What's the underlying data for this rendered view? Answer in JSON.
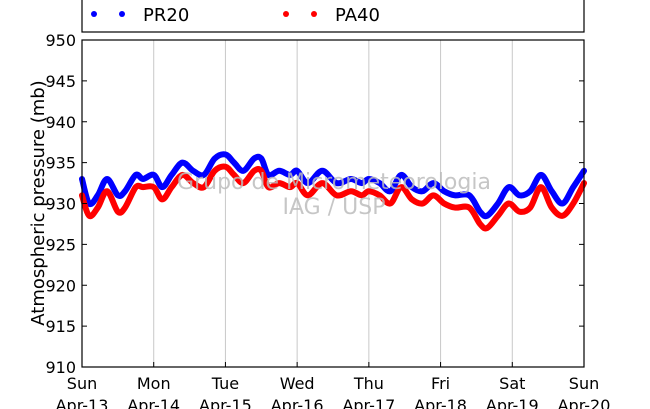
{
  "chart_data": {
    "type": "line",
    "ylabel": "Atmospheric pressure (mb)",
    "xlabel": "",
    "ylim": [
      910,
      950
    ],
    "yticks": [
      910,
      915,
      920,
      925,
      930,
      935,
      940,
      945,
      950
    ],
    "xlim": [
      0,
      7
    ],
    "xticks": [
      {
        "x": 0,
        "day": "Sun",
        "date": "Apr-13"
      },
      {
        "x": 1,
        "day": "Mon",
        "date": "Apr-14"
      },
      {
        "x": 2,
        "day": "Tue",
        "date": "Apr-15"
      },
      {
        "x": 3,
        "day": "Wed",
        "date": "Apr-16"
      },
      {
        "x": 4,
        "day": "Thu",
        "date": "Apr-17"
      },
      {
        "x": 5,
        "day": "Fri",
        "date": "Apr-18"
      },
      {
        "x": 6,
        "day": "Sat",
        "date": "Apr-19"
      },
      {
        "x": 7,
        "day": "Sun",
        "date": "Apr-20"
      }
    ],
    "grid": "vertical",
    "legend_position": "top",
    "watermark": [
      "Grupo de Micrometeorologia",
      "IAG / USP"
    ],
    "series": [
      {
        "name": "PR20",
        "color": "#0000ff",
        "points": [
          [
            0.0,
            933.0
          ],
          [
            0.1,
            930.0
          ],
          [
            0.22,
            931.0
          ],
          [
            0.35,
            933.0
          ],
          [
            0.5,
            931.0
          ],
          [
            0.6,
            931.5
          ],
          [
            0.75,
            933.5
          ],
          [
            0.85,
            933.0
          ],
          [
            1.0,
            933.5
          ],
          [
            1.12,
            932.0
          ],
          [
            1.25,
            933.5
          ],
          [
            1.4,
            935.0
          ],
          [
            1.55,
            934.0
          ],
          [
            1.7,
            933.5
          ],
          [
            1.85,
            935.5
          ],
          [
            2.0,
            936.0
          ],
          [
            2.12,
            935.0
          ],
          [
            2.25,
            934.0
          ],
          [
            2.4,
            935.5
          ],
          [
            2.5,
            935.5
          ],
          [
            2.6,
            933.5
          ],
          [
            2.75,
            934.0
          ],
          [
            2.9,
            933.5
          ],
          [
            3.0,
            934.0
          ],
          [
            3.15,
            932.5
          ],
          [
            3.35,
            934.0
          ],
          [
            3.55,
            932.5
          ],
          [
            3.75,
            933.0
          ],
          [
            3.9,
            932.5
          ],
          [
            4.0,
            933.0
          ],
          [
            4.15,
            932.5
          ],
          [
            4.3,
            931.5
          ],
          [
            4.45,
            933.5
          ],
          [
            4.6,
            932.0
          ],
          [
            4.75,
            931.5
          ],
          [
            4.9,
            932.5
          ],
          [
            5.05,
            931.5
          ],
          [
            5.2,
            931.0
          ],
          [
            5.4,
            931.0
          ],
          [
            5.55,
            929.0
          ],
          [
            5.65,
            928.5
          ],
          [
            5.8,
            930.0
          ],
          [
            5.95,
            932.0
          ],
          [
            6.1,
            931.0
          ],
          [
            6.25,
            931.5
          ],
          [
            6.4,
            933.5
          ],
          [
            6.55,
            931.5
          ],
          [
            6.7,
            930.0
          ],
          [
            6.85,
            932.0
          ],
          [
            7.0,
            934.0
          ]
        ]
      },
      {
        "name": "PA40",
        "color": "#ff0000",
        "points": [
          [
            0.0,
            931.0
          ],
          [
            0.1,
            928.5
          ],
          [
            0.22,
            929.5
          ],
          [
            0.35,
            931.5
          ],
          [
            0.5,
            929.0
          ],
          [
            0.6,
            929.5
          ],
          [
            0.75,
            932.0
          ],
          [
            0.85,
            932.0
          ],
          [
            1.0,
            932.0
          ],
          [
            1.12,
            930.5
          ],
          [
            1.25,
            932.0
          ],
          [
            1.4,
            933.5
          ],
          [
            1.55,
            932.5
          ],
          [
            1.7,
            932.0
          ],
          [
            1.85,
            934.0
          ],
          [
            2.0,
            934.5
          ],
          [
            2.12,
            933.5
          ],
          [
            2.25,
            932.5
          ],
          [
            2.4,
            934.0
          ],
          [
            2.5,
            934.0
          ],
          [
            2.6,
            932.0
          ],
          [
            2.75,
            932.5
          ],
          [
            2.9,
            932.0
          ],
          [
            3.0,
            932.5
          ],
          [
            3.15,
            931.0
          ],
          [
            3.35,
            932.5
          ],
          [
            3.55,
            931.0
          ],
          [
            3.75,
            931.5
          ],
          [
            3.9,
            931.0
          ],
          [
            4.0,
            931.5
          ],
          [
            4.15,
            931.0
          ],
          [
            4.3,
            930.0
          ],
          [
            4.45,
            932.0
          ],
          [
            4.6,
            930.5
          ],
          [
            4.75,
            930.0
          ],
          [
            4.9,
            931.0
          ],
          [
            5.05,
            930.0
          ],
          [
            5.2,
            929.5
          ],
          [
            5.4,
            929.5
          ],
          [
            5.55,
            927.5
          ],
          [
            5.65,
            927.0
          ],
          [
            5.8,
            928.5
          ],
          [
            5.95,
            930.0
          ],
          [
            6.1,
            929.0
          ],
          [
            6.25,
            929.5
          ],
          [
            6.4,
            932.0
          ],
          [
            6.55,
            929.5
          ],
          [
            6.7,
            928.5
          ],
          [
            6.85,
            930.0
          ],
          [
            7.0,
            932.5
          ]
        ]
      }
    ]
  }
}
